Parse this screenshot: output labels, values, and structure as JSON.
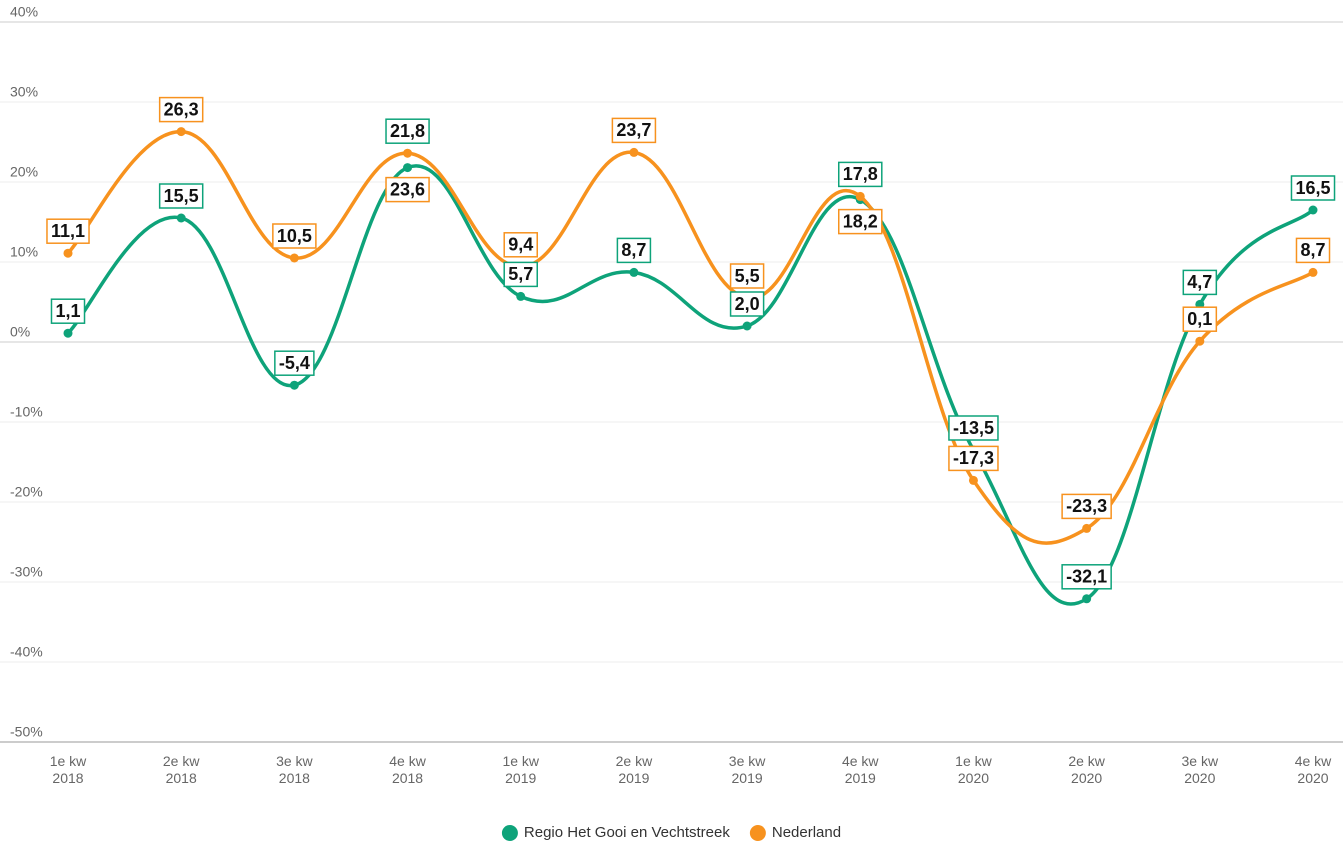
{
  "chart_data": {
    "type": "line",
    "categories": [
      "1e kw 2018",
      "2e kw 2018",
      "3e kw 2018",
      "4e kw 2018",
      "1e kw 2019",
      "2e kw 2019",
      "3e kw 2019",
      "4e kw 2019",
      "1e kw 2020",
      "2e kw 2020",
      "3e kw 2020",
      "4e kw 2020"
    ],
    "series": [
      {
        "name": "Regio Het Gooi en Vechtstreek",
        "color": "#0ea37a",
        "values": [
          1.1,
          15.5,
          -5.4,
          21.8,
          5.7,
          8.7,
          2.0,
          17.8,
          -13.5,
          -32.1,
          4.7,
          16.5
        ],
        "value_labels": [
          "1,1",
          "15,5",
          "-5,4",
          "21,8",
          "5,7",
          "8,7",
          "2,0",
          "17,8",
          "-13,5",
          "-32,1",
          "4,7",
          "16,5"
        ]
      },
      {
        "name": "Nederland",
        "color": "#f7921e",
        "values": [
          11.1,
          26.3,
          10.5,
          23.6,
          9.4,
          23.7,
          5.5,
          18.2,
          -17.3,
          -23.3,
          0.1,
          8.7
        ],
        "value_labels": [
          "11,1",
          "26,3",
          "10,5",
          "23,6",
          "9,4",
          "23,7",
          "5,5",
          "18,2",
          "-17,3",
          "-23,3",
          "0,1",
          "8,7"
        ]
      }
    ],
    "ylim": [
      -50,
      40
    ],
    "yticks": [
      {
        "value": -50,
        "label": "-50%"
      },
      {
        "value": -40,
        "label": "-40%"
      },
      {
        "value": -30,
        "label": "-30%"
      },
      {
        "value": -20,
        "label": "-20%"
      },
      {
        "value": -10,
        "label": "-10%"
      },
      {
        "value": 0,
        "label": "0%"
      },
      {
        "value": 10,
        "label": "10%"
      },
      {
        "value": 20,
        "label": "20%"
      },
      {
        "value": 30,
        "label": "30%"
      },
      {
        "value": 40,
        "label": "40%"
      }
    ],
    "grid": true,
    "legend": "bottom"
  }
}
